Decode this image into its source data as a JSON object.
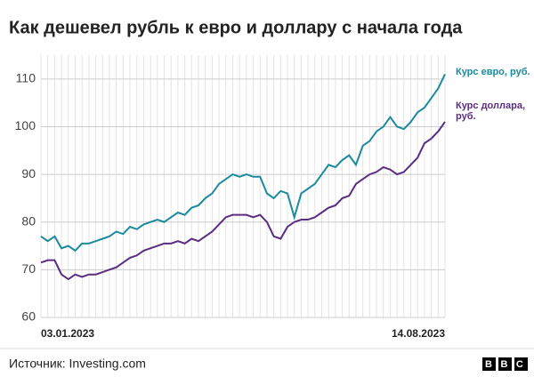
{
  "chart_data": {
    "type": "line",
    "title": "Как дешевел рубль к евро и доллару с начала года",
    "categories": [
      "03.01.2023",
      null,
      null,
      null,
      null,
      null,
      null,
      null,
      null,
      null,
      null,
      null,
      null,
      null,
      null,
      null,
      null,
      null,
      null,
      null,
      null,
      null,
      null,
      null,
      null,
      null,
      null,
      null,
      null,
      null,
      null,
      null,
      null,
      null,
      null,
      null,
      null,
      null,
      null,
      null,
      null,
      null,
      null,
      null,
      null,
      null,
      null,
      null,
      null,
      null,
      null,
      null,
      null,
      null,
      null,
      null,
      null,
      null,
      null,
      "14.08.2023"
    ],
    "series": [
      {
        "name": "Курс евро, руб.",
        "color": "#1b8a9c",
        "values": [
          77,
          76,
          77,
          74.5,
          75,
          74,
          75.5,
          75.5,
          76,
          76.5,
          77,
          78,
          77.5,
          79,
          78.5,
          79.5,
          80,
          80.5,
          80,
          81,
          82,
          81.5,
          83,
          83.5,
          85,
          86,
          88,
          89,
          90,
          89.5,
          90,
          89.5,
          89.5,
          86,
          85,
          86.5,
          86,
          81,
          86,
          87,
          88,
          90,
          92,
          91.5,
          93,
          94,
          92,
          96,
          97,
          99,
          100,
          102,
          100,
          99.5,
          101,
          103,
          104,
          106,
          108,
          111
        ]
      },
      {
        "name": "Курс доллара, руб.",
        "color": "#5a2d82",
        "values": [
          71.5,
          72,
          72,
          69,
          68,
          69,
          68.5,
          69,
          69,
          69.5,
          70,
          70.5,
          71.5,
          72.5,
          73,
          74,
          74.5,
          75,
          75.5,
          75.5,
          76,
          75.5,
          76.5,
          76,
          77,
          78,
          79.5,
          81,
          81.5,
          81.5,
          81.5,
          81,
          81.5,
          80,
          77,
          76.5,
          79,
          80,
          80.5,
          80.5,
          81,
          82,
          83,
          83.5,
          85,
          85.5,
          88,
          89,
          90,
          90.5,
          91.5,
          91,
          90,
          90.5,
          92,
          93.5,
          96.5,
          97.5,
          99,
          101
        ]
      }
    ],
    "ylim": [
      60,
      115
    ],
    "yticks": [
      60,
      70,
      80,
      90,
      100,
      110
    ],
    "grid": true,
    "source": "Источник: Investing.com",
    "logo": "BBC"
  }
}
